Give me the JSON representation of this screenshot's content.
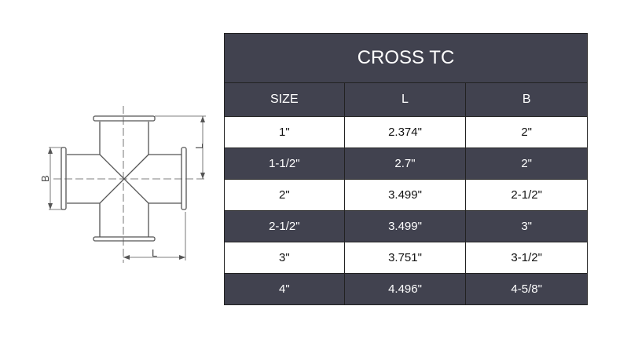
{
  "drawing": {
    "label_b": "B",
    "label_l_vertical": "L",
    "label_l_horizontal": "L"
  },
  "table": {
    "title": "CROSS TC",
    "headers": [
      "SIZE",
      "L",
      "B"
    ],
    "rows": [
      [
        "1\"",
        "2.374\"",
        "2\""
      ],
      [
        "1-1/2\"",
        "2.7\"",
        "2\""
      ],
      [
        "2\"",
        "3.499\"",
        "2-1/2\""
      ],
      [
        "2-1/2\"",
        "3.499\"",
        "3\""
      ],
      [
        "3\"",
        "3.751\"",
        "3-1/2\""
      ],
      [
        "4\"",
        "4.496\"",
        "4-5/8\""
      ]
    ],
    "colors": {
      "dark": "#41424f",
      "light": "#ffffff"
    }
  }
}
